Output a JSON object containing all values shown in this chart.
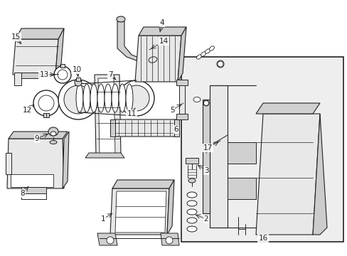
{
  "bg_color": "#ffffff",
  "line_color": "#222222",
  "fill_light": "#e8e8e8",
  "fill_mid": "#d0d0d0",
  "box16_fill": "#eeeeee",
  "fig_width": 4.89,
  "fig_height": 3.6,
  "dpi": 100
}
